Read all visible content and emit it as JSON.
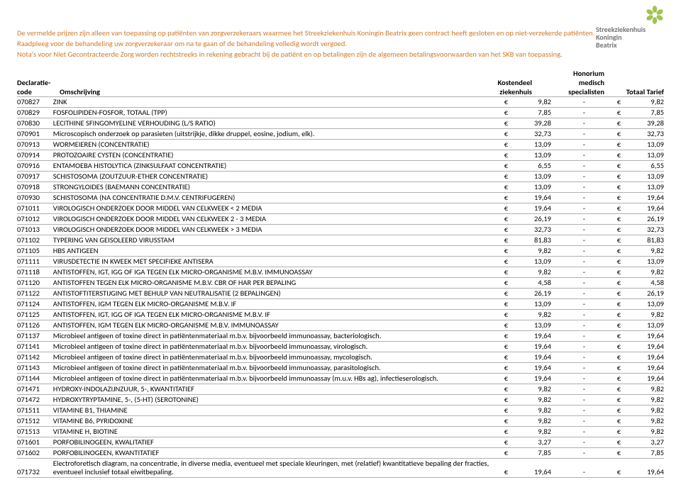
{
  "brand": {
    "line1": "Streekziekenhuis",
    "line2": "Koningin",
    "line3": "Beatrix",
    "petal_color": "#a3c24e",
    "text_color": "#737373"
  },
  "intro_color": "#d17a2a",
  "intro": [
    "De vermelde prijzen zijn alleen van toepassing op patiënten van zorgverzekeraars waarmee het Streekziekenhuis Koningin Beatrix geen contract heeft gesloten en op niet-verzekerde patiënten.",
    "Raadpleeg voor de behandeling uw zorgverzekeraar om na te gaan of de behandeling volledig wordt vergoed.",
    "Nota's voor Niet Gecontracteerde Zorg worden rechtstreeks in rekening gebracht bij de patiënt en op betalingen zijn de algemeen betalingsvoorwaarden van het SKB van toepassing."
  ],
  "headers": {
    "decl1": "Declaratie-",
    "decl2": "code",
    "omsch": "Omschrijving",
    "kost1": "Kostendeel",
    "kost2": "ziekenhuis",
    "hon1": "Honorium",
    "hon2": "medisch",
    "hon3": "specialisten",
    "tot": "Totaal Tarief"
  },
  "euro": "€",
  "dash": "-",
  "rows": [
    {
      "code": "070827",
      "desc": "ZINK",
      "kost": "9,82",
      "tot": "9,82"
    },
    {
      "code": "070829",
      "desc": "FOSFOLIPIDEN-FOSFOR, TOTAAL (TPP)",
      "kost": "7,85",
      "tot": "7,85"
    },
    {
      "code": "070830",
      "desc": "LECITHINE SFINGOMYELINE VERHOUDING (L/S RATIO)",
      "kost": "39,28",
      "tot": "39,28"
    },
    {
      "code": "070901",
      "desc": "Microscopisch onderzoek op parasieten (uitstrijkje, dikke druppel, eosine, jodium, elk).",
      "kost": "32,73",
      "tot": "32,73"
    },
    {
      "code": "070913",
      "desc": "WORMEIEREN (CONCENTRATIE)",
      "kost": "13,09",
      "tot": "13,09"
    },
    {
      "code": "070914",
      "desc": "PROTOZOAIRE CYSTEN (CONCENTRATIE)",
      "kost": "13,09",
      "tot": "13,09"
    },
    {
      "code": "070916",
      "desc": "ENTAMOEBA HISTOLYTICA (ZINKSULFAAT CONCENTRATIE)",
      "kost": "6,55",
      "tot": "6,55"
    },
    {
      "code": "070917",
      "desc": "SCHISTOSOMA (ZOUTZUUR-ETHER CONCENTRATIE)",
      "kost": "13,09",
      "tot": "13,09"
    },
    {
      "code": "070918",
      "desc": "STRONGYLOIDES (BAEMANN CONCENTRATIE)",
      "kost": "13,09",
      "tot": "13,09"
    },
    {
      "code": "070930",
      "desc": "SCHISTOSOMA (NA CONCENTRATIE D.M.V. CENTRIFUGEREN)",
      "kost": "19,64",
      "tot": "19,64"
    },
    {
      "code": "071011",
      "desc": "VIROLOGISCH ONDERZOEK DOOR MIDDEL VAN CELKWEEK < 2 MEDIA",
      "kost": "19,64",
      "tot": "19,64"
    },
    {
      "code": "071012",
      "desc": "VIROLOGISCH ONDERZOEK DOOR MIDDEL VAN CELKWEEK 2 - 3 MEDIA",
      "kost": "26,19",
      "tot": "26,19"
    },
    {
      "code": "071013",
      "desc": "VIROLOGISCH ONDERZOEK DOOR MIDDEL VAN CELKWEEK > 3 MEDIA",
      "kost": "32,73",
      "tot": "32,73"
    },
    {
      "code": "071102",
      "desc": "TYPERING VAN GEISOLEERD VIRUSSTAM",
      "kost": "81,83",
      "tot": "81,83"
    },
    {
      "code": "071105",
      "desc": "HBS ANTIGEEN",
      "kost": "9,82",
      "tot": "9,82"
    },
    {
      "code": "071111",
      "desc": "VIRUSDETECTIE IN KWEEK MET SPECIFIEKE ANTISERA",
      "kost": "13,09",
      "tot": "13,09"
    },
    {
      "code": "071118",
      "desc": "ANTISTOFFEN, IGT, IGG OF IGA TEGEN ELK MICRO-ORGANISME M.B.V. IMMUNOASSAY",
      "kost": "9,82",
      "tot": "9,82"
    },
    {
      "code": "071120",
      "desc": "ANTISTOFFEN TEGEN ELK MICRO-ORGANISME M.B.V. CBR OF HAR PER BEPALING",
      "kost": "4,58",
      "tot": "4,58"
    },
    {
      "code": "071122",
      "desc": "ANTISTOFTITERSTIJGING MET BEHULP VAN NEUTRALISATIE (2 BEPALINGEN)",
      "kost": "26,19",
      "tot": "26,19"
    },
    {
      "code": "071124",
      "desc": "ANTISTOFFEN, IGM TEGEN ELK MICRO-ORGANISME M.B.V. IF",
      "kost": "13,09",
      "tot": "13,09"
    },
    {
      "code": "071125",
      "desc": "ANTISTOFFEN, IGT, IGG OF IGA TEGEN ELK MICRO-ORGANISME M.B.V. IF",
      "kost": "9,82",
      "tot": "9,82"
    },
    {
      "code": "071126",
      "desc": "ANTISTOFFEN, IGM TEGEN ELK MICRO-ORGANISME M.B.V. IMMUNOASSAY",
      "kost": "13,09",
      "tot": "13,09"
    },
    {
      "code": "071137",
      "desc": "Microbieel antigeen of toxine direct in patiëntenmateriaal m.b.v. bijvoorbeeld immunoassay, bacteriologisch.",
      "kost": "19,64",
      "tot": "19,64"
    },
    {
      "code": "071141",
      "desc": "Microbieel antigeen of toxine direct in patiëntenmateriaal m.b.v. bijvoorbeeld immunoassay, virologisch.",
      "kost": "19,64",
      "tot": "19,64"
    },
    {
      "code": "071142",
      "desc": "Microbieel antigeen of toxine direct in patiëntenmateriaal m.b.v. bijvoorbeeld immunoassay, mycologisch.",
      "kost": "19,64",
      "tot": "19,64"
    },
    {
      "code": "071143",
      "desc": "Microbieel antigeen of toxine direct in patiëntenmateriaal m.b.v. bijvoorbeeld immunoassay, parasitologisch.",
      "kost": "19,64",
      "tot": "19,64"
    },
    {
      "code": "071144",
      "desc": "Microbieel antigeen of toxine direct in patiëntenmateriaal m.b.v. bijvoorbeeld immunoassay (m.u.v. HBs ag), infectieserologisch.",
      "kost": "19,64",
      "tot": "19,64"
    },
    {
      "code": "071471",
      "desc": "HYDROXY-INDOLAZIJNZUUR, 5-, KWANTITATIEF",
      "kost": "9,82",
      "tot": "9,82"
    },
    {
      "code": "071472",
      "desc": "HYDROXYTRYPTAMINE, 5-, (5-HT) (SEROTONINE)",
      "kost": "9,82",
      "tot": "9,82"
    },
    {
      "code": "071511",
      "desc": "VITAMINE B1, THIAMINE",
      "kost": "9,82",
      "tot": "9,82"
    },
    {
      "code": "071512",
      "desc": "VITAMINE B6, PYRIDOXINE",
      "kost": "9,82",
      "tot": "9,82"
    },
    {
      "code": "071513",
      "desc": "VITAMINE H, BIOTINE",
      "kost": "9,82",
      "tot": "9,82"
    },
    {
      "code": "071601",
      "desc": "PORFOBILINOGEEN, KWALITATIEF",
      "kost": "3,27",
      "tot": "3,27"
    },
    {
      "code": "071602",
      "desc": "PORFOBILINOGEEN, KWANTITATIEF",
      "kost": "7,85",
      "tot": "7,85"
    },
    {
      "code": "071732",
      "desc": "Electroforetisch diagram, na concentratie, in diverse media, eventueel met speciale kleuringen, met (relatief) kwantitatieve bepaling der fracties, eventueel inclusief totaal eiwitbepaling.",
      "kost": "19,64",
      "tot": "19,64"
    }
  ]
}
